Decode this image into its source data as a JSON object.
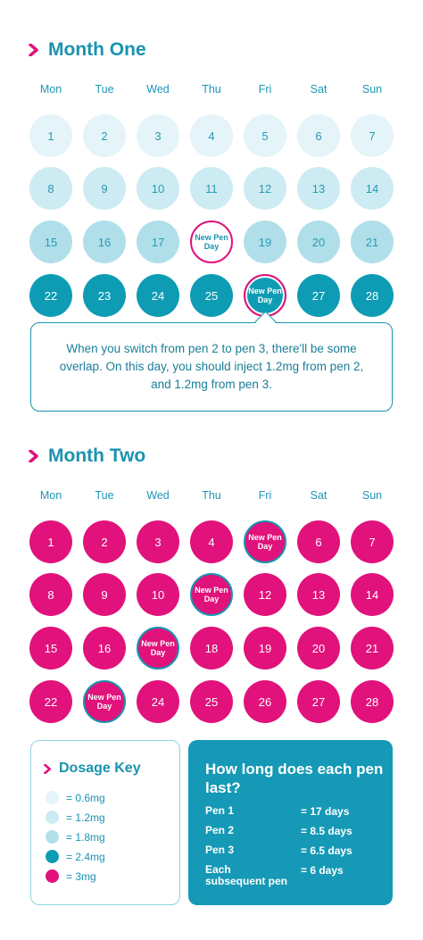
{
  "month_one": {
    "title": "Month One",
    "weekdays": [
      "Mon",
      "Tue",
      "Wed",
      "Thu",
      "Fri",
      "Sat",
      "Sun"
    ],
    "days": [
      {
        "label": "1"
      },
      {
        "label": "2"
      },
      {
        "label": "3"
      },
      {
        "label": "4"
      },
      {
        "label": "5"
      },
      {
        "label": "6"
      },
      {
        "label": "7"
      },
      {
        "label": "8"
      },
      {
        "label": "9"
      },
      {
        "label": "10"
      },
      {
        "label": "11"
      },
      {
        "label": "12"
      },
      {
        "label": "13"
      },
      {
        "label": "14"
      },
      {
        "label": "15"
      },
      {
        "label": "16"
      },
      {
        "label": "17"
      },
      {
        "label": "New Pen Day"
      },
      {
        "label": "19"
      },
      {
        "label": "20"
      },
      {
        "label": "21"
      },
      {
        "label": "22"
      },
      {
        "label": "23"
      },
      {
        "label": "24"
      },
      {
        "label": "25"
      },
      {
        "label": "New Pen Day"
      },
      {
        "label": "27"
      },
      {
        "label": "28"
      }
    ],
    "callout": "When you switch from pen 2 to pen 3, there'll be some overlap. On this day, you should inject 1.2mg from pen 2, and 1.2mg from pen 3."
  },
  "month_two": {
    "title": "Month Two",
    "weekdays": [
      "Mon",
      "Tue",
      "Wed",
      "Thu",
      "Fri",
      "Sat",
      "Sun"
    ],
    "days": [
      {
        "label": "1"
      },
      {
        "label": "2"
      },
      {
        "label": "3"
      },
      {
        "label": "4"
      },
      {
        "label": "New Pen Day"
      },
      {
        "label": "6"
      },
      {
        "label": "7"
      },
      {
        "label": "8"
      },
      {
        "label": "9"
      },
      {
        "label": "10"
      },
      {
        "label": "New Pen Day"
      },
      {
        "label": "12"
      },
      {
        "label": "13"
      },
      {
        "label": "14"
      },
      {
        "label": "15"
      },
      {
        "label": "16"
      },
      {
        "label": "New Pen Day"
      },
      {
        "label": "18"
      },
      {
        "label": "19"
      },
      {
        "label": "20"
      },
      {
        "label": "21"
      },
      {
        "label": "22"
      },
      {
        "label": "New Pen Day"
      },
      {
        "label": "24"
      },
      {
        "label": "25"
      },
      {
        "label": "26"
      },
      {
        "label": "27"
      },
      {
        "label": "28"
      }
    ]
  },
  "dosage_key": {
    "title": "Dosage Key",
    "items": [
      {
        "label": "= 0.6mg",
        "color": "#e4f4f8"
      },
      {
        "label": "= 1.2mg",
        "color": "#cdebf2"
      },
      {
        "label": "= 1.8mg",
        "color": "#b0dfea"
      },
      {
        "label": "= 2.4mg",
        "color": "#0e9cb4"
      },
      {
        "label": "= 3mg",
        "color": "#e1127b"
      }
    ]
  },
  "pen_duration": {
    "title": "How long does each pen last?",
    "rows": [
      {
        "pen": "Pen 1",
        "duration": "= 17 days"
      },
      {
        "pen": "Pen 2",
        "duration": "= 8.5 days"
      },
      {
        "pen": "Pen 3",
        "duration": "= 6.5 days"
      },
      {
        "pen": "Each subsequent pen",
        "duration": "= 6 days"
      }
    ]
  }
}
